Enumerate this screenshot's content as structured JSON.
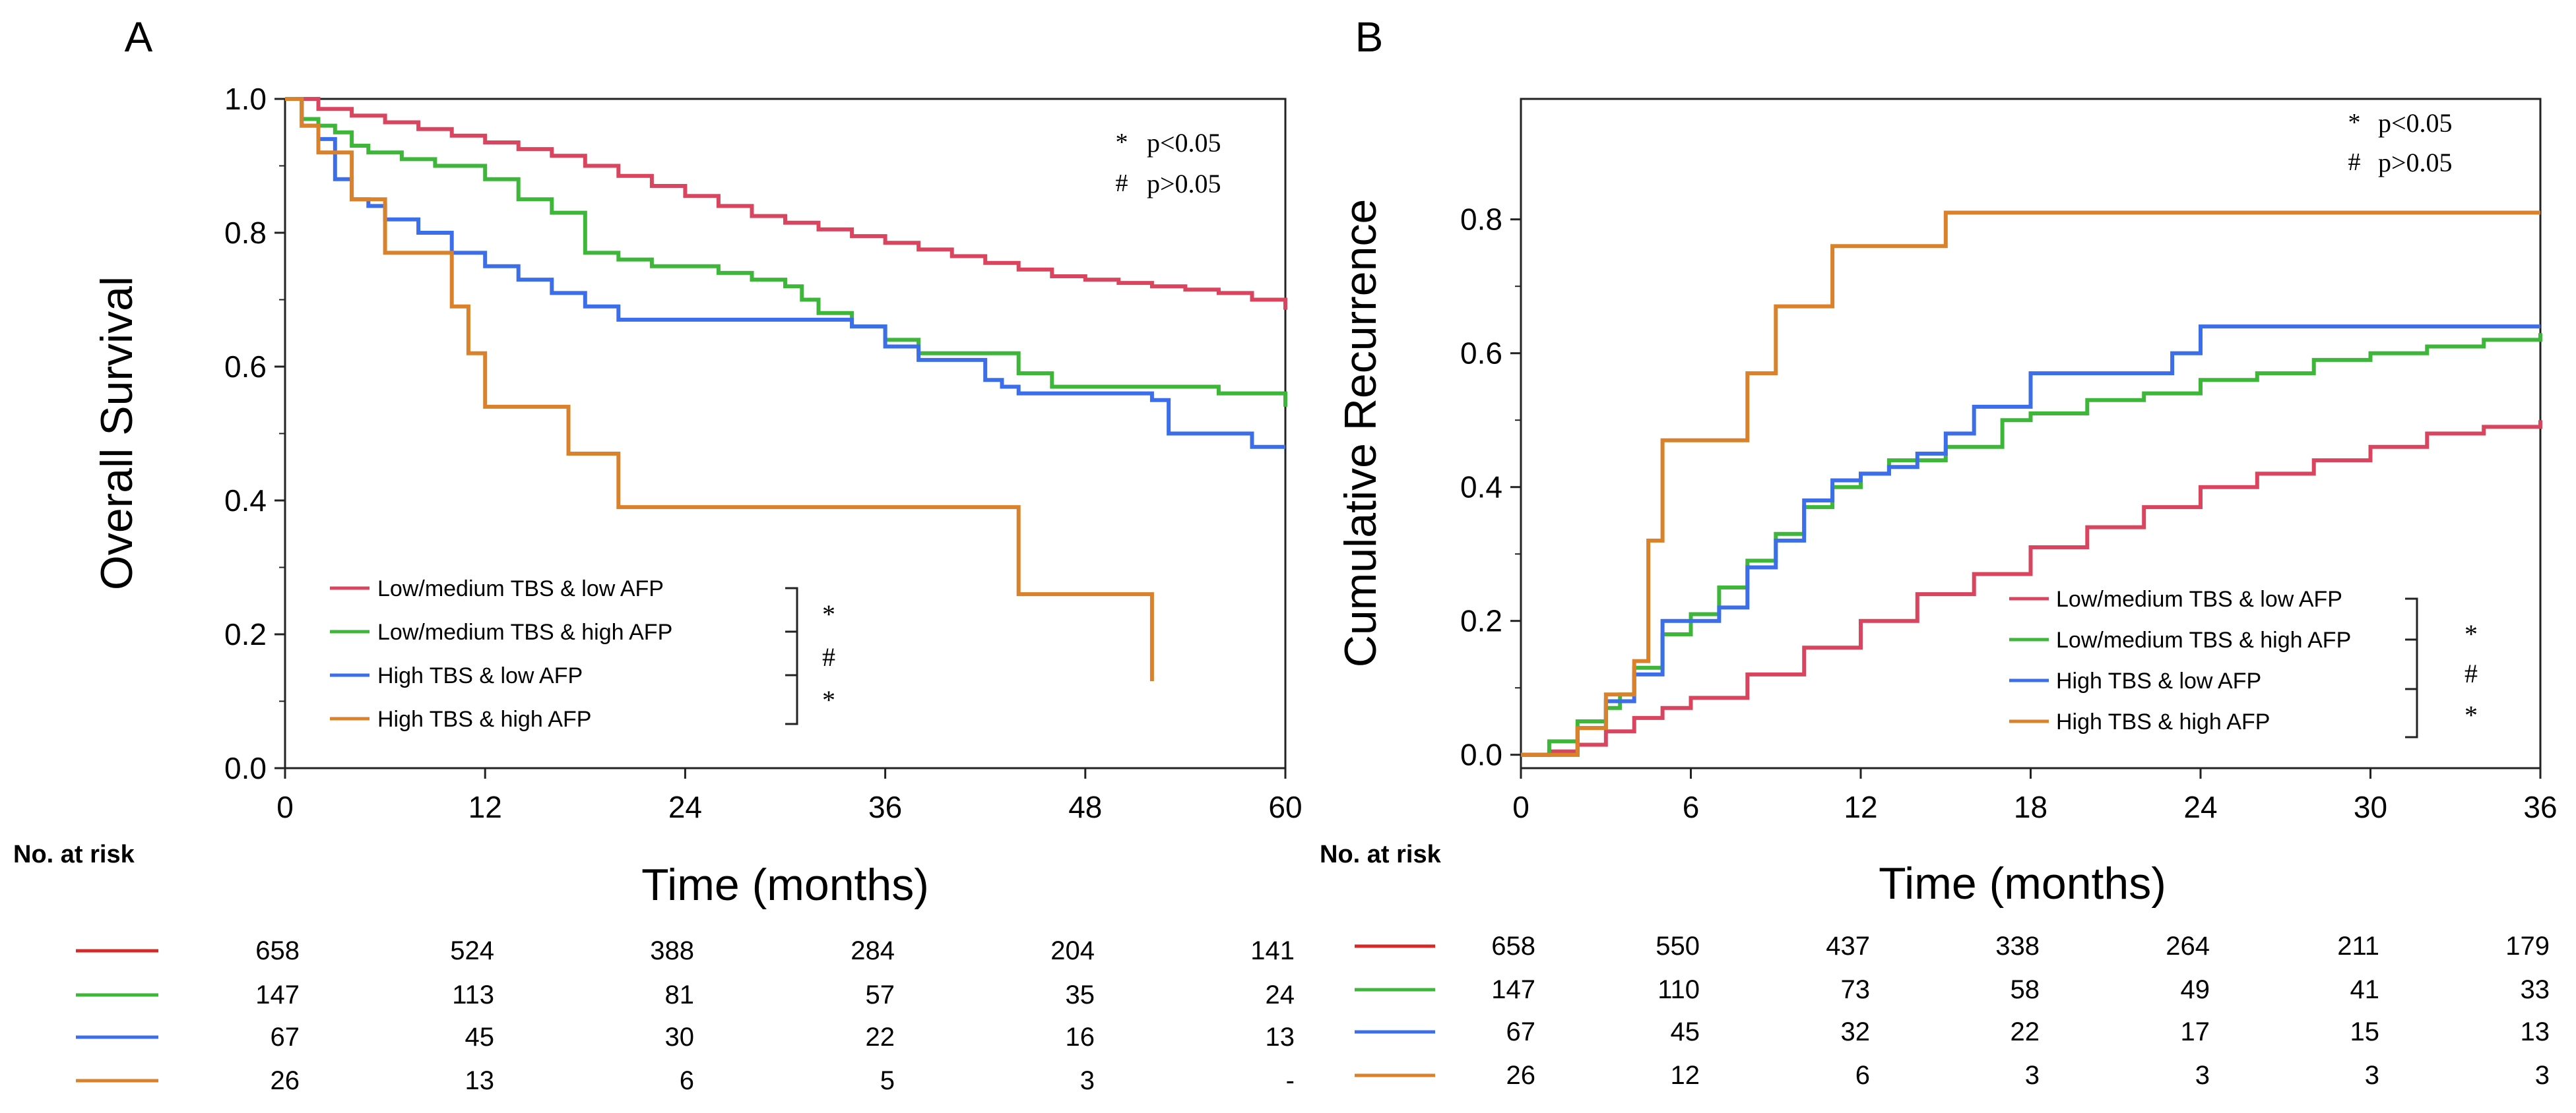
{
  "colors": {
    "red": "#d9455f",
    "green": "#3db63a",
    "blue": "#3b6ee8",
    "orange": "#d9822b",
    "axis": "#222222",
    "risk_red": "#d42a2a"
  },
  "chart_data": [
    {
      "panel_letter": "A",
      "type": "line",
      "step": true,
      "xlabel": "Time (months)",
      "ylabel": "Overall Survival",
      "xlim": [
        0,
        60
      ],
      "ylim": [
        0,
        1.0
      ],
      "xticks": [
        0,
        12,
        24,
        36,
        48,
        60
      ],
      "yticks": [
        0.0,
        0.2,
        0.4,
        0.6,
        0.8,
        1.0
      ],
      "ytick_labels": [
        "0.0",
        "0.2",
        "0.4",
        "0.6",
        "0.8",
        "1.0"
      ],
      "annotations": {
        "star_symbol": "*",
        "star_text": "p<0.05",
        "hash_symbol": "#",
        "hash_text": "p>0.05"
      },
      "comparison_marks": [
        "*",
        "#",
        "*"
      ],
      "series": [
        {
          "name": "Low/medium TBS & low AFP",
          "color_key": "red",
          "x": [
            0,
            2,
            4,
            6,
            8,
            10,
            12,
            14,
            16,
            18,
            20,
            22,
            24,
            26,
            28,
            30,
            32,
            34,
            36,
            38,
            40,
            42,
            44,
            46,
            48,
            50,
            52,
            54,
            56,
            58,
            60
          ],
          "y": [
            1.0,
            0.985,
            0.975,
            0.965,
            0.955,
            0.945,
            0.935,
            0.925,
            0.915,
            0.9,
            0.885,
            0.87,
            0.855,
            0.84,
            0.825,
            0.815,
            0.805,
            0.795,
            0.785,
            0.775,
            0.765,
            0.755,
            0.745,
            0.735,
            0.73,
            0.725,
            0.72,
            0.715,
            0.71,
            0.7,
            0.685
          ]
        },
        {
          "name": "Low/medium TBS & high AFP",
          "color_key": "green",
          "x": [
            0,
            1,
            2,
            3,
            4,
            5,
            7,
            9,
            12,
            14,
            16,
            18,
            20,
            22,
            24,
            26,
            28,
            30,
            31,
            32,
            34,
            36,
            38,
            44,
            46,
            56,
            60
          ],
          "y": [
            1.0,
            0.97,
            0.96,
            0.95,
            0.93,
            0.92,
            0.91,
            0.9,
            0.88,
            0.85,
            0.83,
            0.77,
            0.76,
            0.75,
            0.75,
            0.74,
            0.73,
            0.72,
            0.7,
            0.68,
            0.66,
            0.64,
            0.62,
            0.59,
            0.57,
            0.56,
            0.54
          ]
        },
        {
          "name": "High TBS & low AFP",
          "color_key": "blue",
          "x": [
            0,
            1,
            2,
            3,
            4,
            5,
            6,
            8,
            10,
            12,
            14,
            16,
            18,
            20,
            34,
            36,
            38,
            42,
            43,
            44,
            52,
            53,
            54,
            58,
            60
          ],
          "y": [
            1.0,
            0.96,
            0.94,
            0.88,
            0.85,
            0.84,
            0.82,
            0.8,
            0.77,
            0.75,
            0.73,
            0.71,
            0.69,
            0.67,
            0.66,
            0.63,
            0.61,
            0.58,
            0.57,
            0.56,
            0.55,
            0.5,
            0.5,
            0.48,
            0.48
          ]
        },
        {
          "name": "High TBS & high AFP",
          "color_key": "orange",
          "x": [
            0,
            1,
            2,
            4,
            6,
            9,
            10,
            11,
            12,
            17,
            20,
            24,
            34,
            43,
            44,
            51,
            52
          ],
          "y": [
            1.0,
            0.96,
            0.92,
            0.85,
            0.77,
            0.77,
            0.69,
            0.62,
            0.54,
            0.47,
            0.39,
            0.39,
            0.39,
            0.39,
            0.26,
            0.26,
            0.13
          ]
        }
      ],
      "risk_table": {
        "label": "No. at risk",
        "rows": [
          {
            "color_key": "risk_red",
            "values": [
              "658",
              "524",
              "388",
              "284",
              "204",
              "141"
            ]
          },
          {
            "color_key": "green",
            "values": [
              "147",
              "113",
              "81",
              "57",
              "35",
              "24"
            ]
          },
          {
            "color_key": "blue",
            "values": [
              "67",
              "45",
              "30",
              "22",
              "16",
              "13"
            ]
          },
          {
            "color_key": "orange",
            "values": [
              "26",
              "13",
              "6",
              "5",
              "3",
              "-"
            ]
          }
        ]
      }
    },
    {
      "panel_letter": "B",
      "type": "line",
      "step": true,
      "xlabel": "Time (months)",
      "ylabel": "Cumulative Recurrence",
      "xlim": [
        0,
        36
      ],
      "ylim": [
        -0.02,
        0.98
      ],
      "xticks": [
        0,
        6,
        12,
        18,
        24,
        30,
        36
      ],
      "yticks": [
        0.0,
        0.2,
        0.4,
        0.6,
        0.8
      ],
      "ytick_labels": [
        "0.0",
        "0.2",
        "0.4",
        "0.6",
        "0.8"
      ],
      "annotations": {
        "star_symbol": "*",
        "star_text": "p<0.05",
        "hash_symbol": "#",
        "hash_text": "p>0.05"
      },
      "comparison_marks": [
        "*",
        "#",
        "*"
      ],
      "series": [
        {
          "name": "Low/medium TBS & low AFP",
          "color_key": "red",
          "x": [
            0,
            1,
            2,
            3,
            4,
            5,
            6,
            8,
            10,
            12,
            14,
            16,
            18,
            20,
            22,
            24,
            26,
            28,
            30,
            32,
            34,
            36
          ],
          "y": [
            0.0,
            0.005,
            0.015,
            0.035,
            0.055,
            0.07,
            0.085,
            0.12,
            0.16,
            0.2,
            0.24,
            0.27,
            0.31,
            0.34,
            0.37,
            0.4,
            0.42,
            0.44,
            0.46,
            0.48,
            0.49,
            0.5
          ]
        },
        {
          "name": "Low/medium TBS & high AFP",
          "color_key": "green",
          "x": [
            0,
            1,
            2,
            3,
            3.5,
            4,
            5,
            6,
            7,
            8,
            9,
            10,
            11,
            12,
            13,
            15,
            17,
            18,
            20,
            22,
            24,
            26,
            28,
            30,
            32,
            34,
            36
          ],
          "y": [
            0.0,
            0.02,
            0.05,
            0.07,
            0.09,
            0.13,
            0.18,
            0.21,
            0.25,
            0.29,
            0.33,
            0.37,
            0.4,
            0.42,
            0.44,
            0.46,
            0.5,
            0.51,
            0.53,
            0.54,
            0.56,
            0.57,
            0.59,
            0.6,
            0.61,
            0.62,
            0.63
          ]
        },
        {
          "name": "High TBS & low AFP",
          "color_key": "blue",
          "x": [
            0,
            2,
            3,
            4,
            5,
            7,
            8,
            9,
            10,
            11,
            12,
            13,
            14,
            15,
            16,
            18,
            20,
            23,
            24,
            36
          ],
          "y": [
            0.0,
            0.04,
            0.08,
            0.12,
            0.2,
            0.22,
            0.28,
            0.32,
            0.38,
            0.41,
            0.42,
            0.43,
            0.45,
            0.48,
            0.52,
            0.57,
            0.57,
            0.6,
            0.64,
            0.64
          ]
        },
        {
          "name": "High TBS & high AFP",
          "color_key": "orange",
          "x": [
            0,
            2,
            3,
            4,
            4.5,
            5,
            7,
            8,
            9,
            10,
            11,
            12,
            15,
            36
          ],
          "y": [
            0.0,
            0.04,
            0.09,
            0.14,
            0.32,
            0.47,
            0.47,
            0.57,
            0.67,
            0.67,
            0.76,
            0.76,
            0.81,
            0.81
          ]
        }
      ],
      "risk_table": {
        "label": "No. at risk",
        "rows": [
          {
            "color_key": "risk_red",
            "values": [
              "658",
              "550",
              "437",
              "338",
              "264",
              "211",
              "179"
            ]
          },
          {
            "color_key": "green",
            "values": [
              "147",
              "110",
              "73",
              "58",
              "49",
              "41",
              "33"
            ]
          },
          {
            "color_key": "blue",
            "values": [
              "67",
              "45",
              "32",
              "22",
              "17",
              "15",
              "13"
            ]
          },
          {
            "color_key": "orange",
            "values": [
              "26",
              "12",
              "6",
              "3",
              "3",
              "3",
              "3"
            ]
          }
        ]
      }
    }
  ]
}
